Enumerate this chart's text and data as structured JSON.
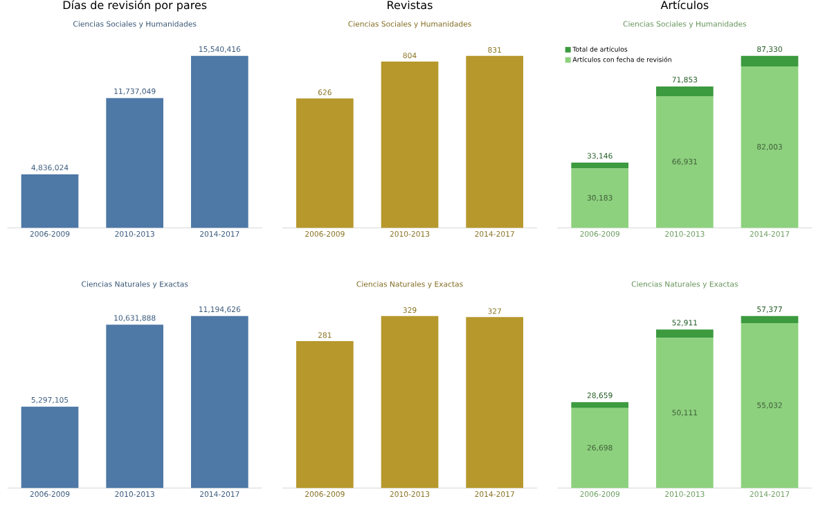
{
  "chart_data": [
    {
      "type": "bar",
      "title": "Días de revisión por pares",
      "subtitle": "Ciencias Sociales y Humanidades",
      "categories": [
        "2006-2009",
        "2010-2013",
        "2014-2017"
      ],
      "series": [
        {
          "color": "#4e78a6",
          "values": [
            4836024,
            11737049,
            15540416
          ],
          "value_labels": [
            "4,836,024",
            "11,737,049",
            "15,540,416"
          ]
        }
      ]
    },
    {
      "type": "bar",
      "title": "Revistas",
      "subtitle": "Ciencias Sociales y Humanidades",
      "categories": [
        "2006-2009",
        "2010-2013",
        "2014-2017"
      ],
      "series": [
        {
          "color": "#b6982c",
          "values": [
            626,
            804,
            831
          ],
          "value_labels": [
            "626",
            "804",
            "831"
          ]
        }
      ]
    },
    {
      "type": "bar",
      "title": "Artículos",
      "subtitle": "Ciencias Sociales y Humanidades",
      "categories": [
        "2006-2009",
        "2010-2013",
        "2014-2017"
      ],
      "stacked": true,
      "legend": "top left",
      "series": [
        {
          "name": "Artículos con fecha de revisión",
          "color": "#8dd17e",
          "values": [
            30183,
            66931,
            82003
          ],
          "value_labels": [
            "30,183",
            "66,931",
            "82,003"
          ]
        },
        {
          "name": "Total de artículos",
          "color": "#3c9a3f",
          "values": [
            2963,
            4922,
            5327
          ]
        }
      ],
      "totals": [
        "33,146",
        "71,853",
        "87,330"
      ]
    },
    {
      "type": "bar",
      "title": "Ciencias Naturales y Exactas",
      "categories": [
        "2006-2009",
        "2010-2013",
        "2014-2017"
      ],
      "series": [
        {
          "color": "#4e78a6",
          "values": [
            5297105,
            10631888,
            11194626
          ],
          "value_labels": [
            "5,297,105",
            "10,631,888",
            "11,194,626"
          ]
        }
      ]
    },
    {
      "type": "bar",
      "title": "Ciencias Naturales y Exactas",
      "categories": [
        "2006-2009",
        "2010-2013",
        "2014-2017"
      ],
      "series": [
        {
          "color": "#b6982c",
          "values": [
            281,
            329,
            327
          ],
          "value_labels": [
            "281",
            "329",
            "327"
          ]
        }
      ]
    },
    {
      "type": "bar",
      "title": "Ciencias Naturales y Exactas",
      "categories": [
        "2006-2009",
        "2010-2013",
        "2014-2017"
      ],
      "stacked": true,
      "series": [
        {
          "color": "#8dd17e",
          "values": [
            26698,
            50111,
            55032
          ],
          "value_labels": [
            "26,698",
            "50,111",
            "55,032"
          ]
        },
        {
          "color": "#3c9a3f",
          "values": [
            1961,
            2800,
            2345
          ]
        }
      ],
      "totals": [
        "28,659",
        "52,911",
        "57,377"
      ]
    }
  ]
}
